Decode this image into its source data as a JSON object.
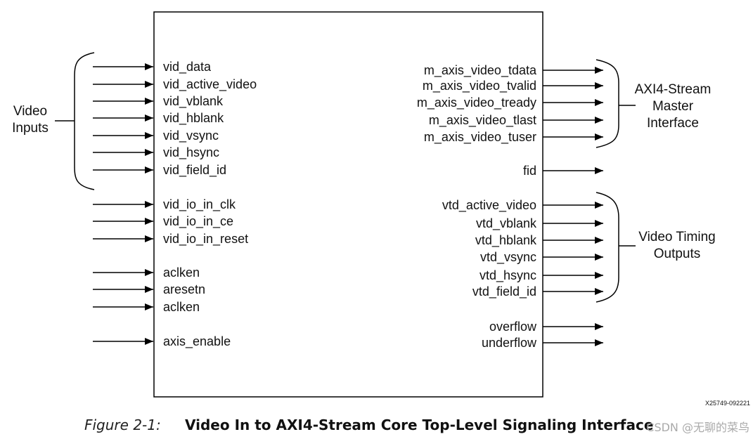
{
  "core_block": {
    "label": ""
  },
  "inputs": [
    "vid_data",
    "vid_active_video",
    "vid_vblank",
    "vid_hblank",
    "vid_vsync",
    "vid_hsync",
    "vid_field_id",
    "vid_io_in_clk",
    "vid_io_in_ce",
    "vid_io_in_reset",
    "aclken",
    "aresetn",
    "aclken",
    "axis_enable"
  ],
  "outputs": {
    "axi_master": [
      "m_axis_video_tdata",
      "m_axis_video_tvalid",
      "m_axis_video_tready",
      "m_axis_video_tlast",
      "m_axis_video_tuser"
    ],
    "fid": "fid",
    "timing": [
      "vtd_active_video",
      "vtd_vblank",
      "vtd_hblank",
      "vtd_vsync",
      "vtd_hsync",
      "vtd_field_id"
    ],
    "flags": [
      "overflow",
      "underflow"
    ]
  },
  "groups": {
    "video_inputs": [
      "Video",
      "Inputs"
    ],
    "axi_stream_master": [
      "AXI4-Stream",
      "Master",
      "Interface"
    ],
    "video_timing_outputs": [
      "Video Timing",
      "Outputs"
    ]
  },
  "reference_id": "X25749-092221",
  "caption": {
    "figure": "Figure 2-1:",
    "title": "Video In to AXI4-Stream Core Top-Level Signaling Interface"
  },
  "watermark": "CSDN @无聊的菜鸟"
}
